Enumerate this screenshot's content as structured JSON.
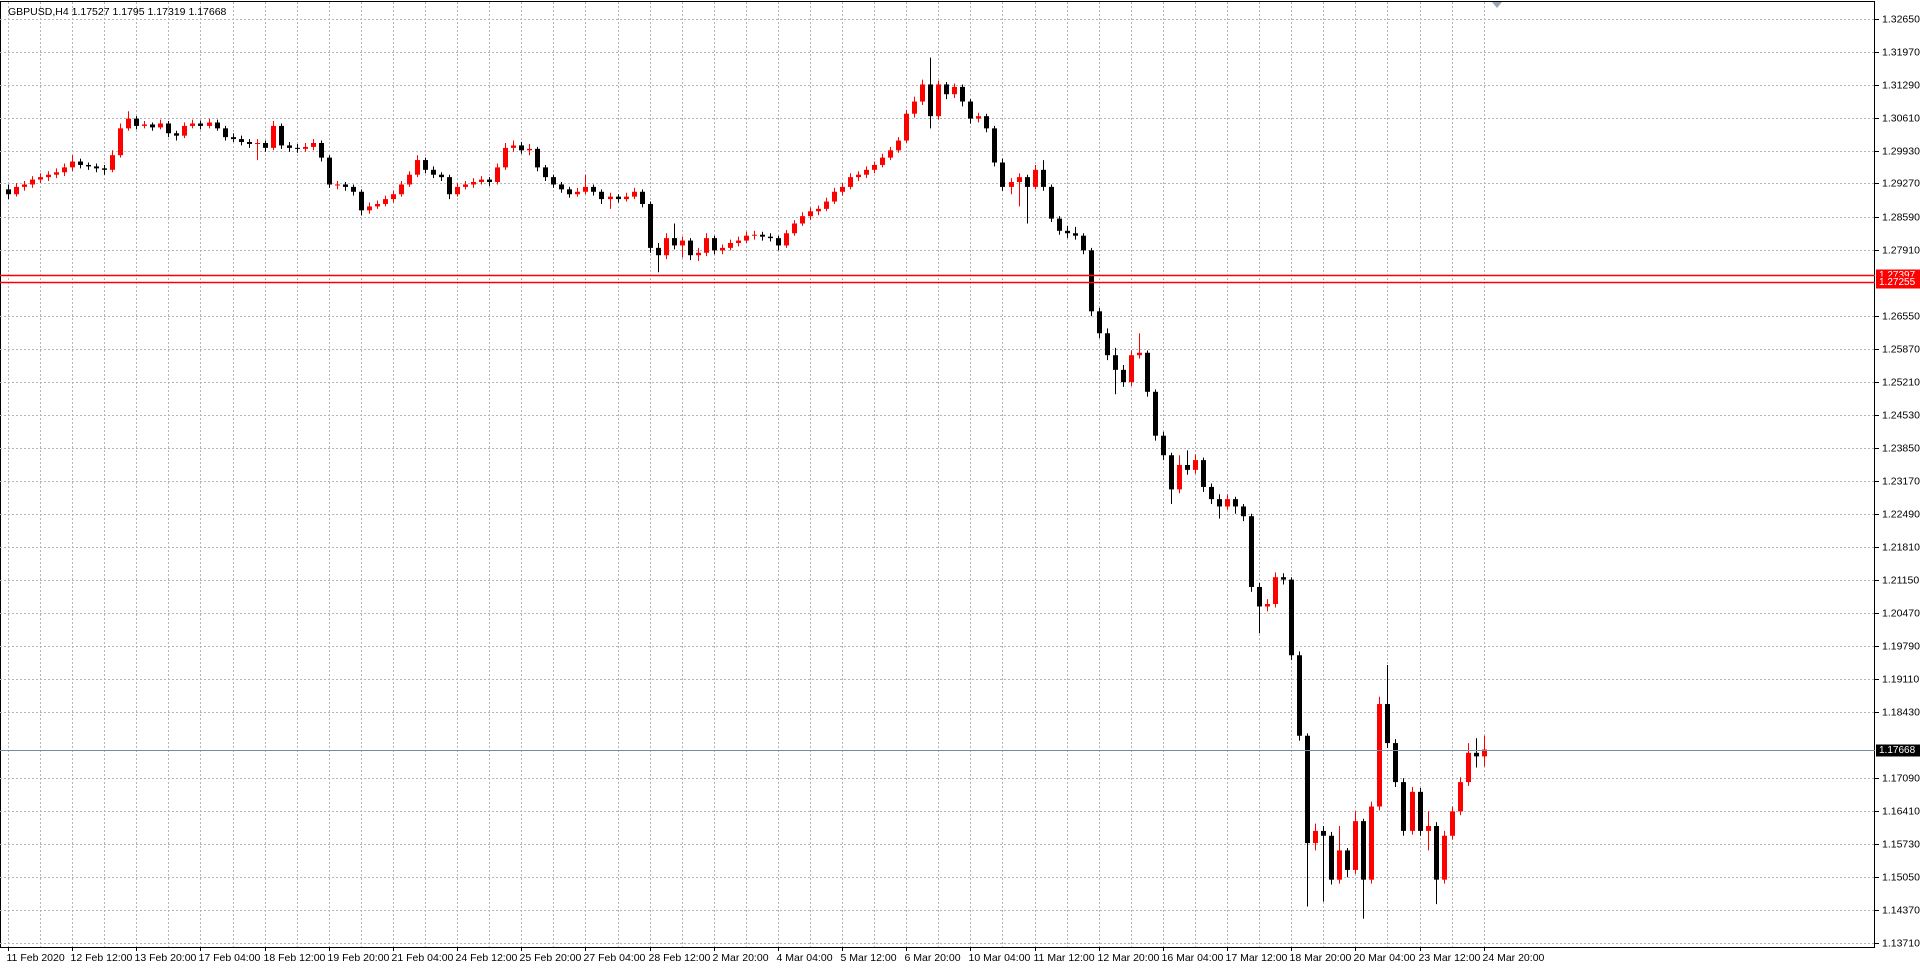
{
  "chart_data": {
    "type": "candlestick",
    "title": "GBPUSD,H4",
    "up_color": "#ff0000",
    "down_color": "#000000",
    "grid": true,
    "ylim": [
      1.1362,
      1.3299
    ],
    "yticks": [
      {
        "value": 1.3265,
        "label": "1.32650"
      },
      {
        "value": 1.3197,
        "label": "1.31970"
      },
      {
        "value": 1.3129,
        "label": "1.31290"
      },
      {
        "value": 1.3061,
        "label": "1.30610"
      },
      {
        "value": 1.2993,
        "label": "1.29930"
      },
      {
        "value": 1.2927,
        "label": "1.29270"
      },
      {
        "value": 1.2859,
        "label": "1.28590"
      },
      {
        "value": 1.2791,
        "label": "1.27910"
      },
      {
        "value": 1.2655,
        "label": "1.26550"
      },
      {
        "value": 1.2587,
        "label": "1.25870"
      },
      {
        "value": 1.2521,
        "label": "1.25210"
      },
      {
        "value": 1.2453,
        "label": "1.24530"
      },
      {
        "value": 1.2385,
        "label": "1.23850"
      },
      {
        "value": 1.2317,
        "label": "1.23170"
      },
      {
        "value": 1.2249,
        "label": "1.22490"
      },
      {
        "value": 1.2181,
        "label": "1.21810"
      },
      {
        "value": 1.2115,
        "label": "1.21150"
      },
      {
        "value": 1.2047,
        "label": "1.20470"
      },
      {
        "value": 1.1979,
        "label": "1.19790"
      },
      {
        "value": 1.1911,
        "label": "1.19110"
      },
      {
        "value": 1.1843,
        "label": "1.18430"
      },
      {
        "value": 1.1709,
        "label": "1.17090"
      },
      {
        "value": 1.1641,
        "label": "1.16410"
      },
      {
        "value": 1.1573,
        "label": "1.15730"
      },
      {
        "value": 1.1505,
        "label": "1.15050"
      },
      {
        "value": 1.1437,
        "label": "1.14370"
      },
      {
        "value": 1.1371,
        "label": "1.13710"
      }
    ],
    "levels": [
      {
        "value": 1.27397,
        "color": "#ff0000"
      },
      {
        "value": 1.27255,
        "color": "#ff0000"
      }
    ],
    "categories": [
      "11 Feb 2020",
      null,
      null,
      null,
      null,
      null,
      null,
      null,
      "12 Feb 12:00",
      null,
      null,
      null,
      null,
      null,
      null,
      null,
      "13 Feb 20:00",
      null,
      null,
      null,
      null,
      null,
      null,
      null,
      "17 Feb 04:00",
      null,
      null,
      null,
      null,
      null,
      null,
      null,
      "18 Feb 12:00",
      null,
      null,
      null,
      null,
      null,
      null,
      null,
      "19 Feb 20:00",
      null,
      null,
      null,
      null,
      null,
      null,
      null,
      "21 Feb 04:00",
      null,
      null,
      null,
      null,
      null,
      null,
      null,
      "24 Feb 12:00",
      null,
      null,
      null,
      null,
      null,
      null,
      null,
      "25 Feb 20:00",
      null,
      null,
      null,
      null,
      null,
      null,
      null,
      "27 Feb 04:00",
      null,
      null,
      null,
      null,
      null,
      null,
      null,
      "28 Feb 12:00",
      null,
      null,
      null,
      null,
      null,
      null,
      null,
      "2 Mar 20:00",
      null,
      null,
      null,
      null,
      null,
      null,
      null,
      "4 Mar 04:00",
      null,
      null,
      null,
      null,
      null,
      null,
      null,
      "5 Mar 12:00",
      null,
      null,
      null,
      null,
      null,
      null,
      null,
      "6 Mar 20:00",
      null,
      null,
      null,
      null,
      null,
      null,
      null,
      "10 Mar 04:00",
      null,
      null,
      null,
      null,
      null,
      null,
      null,
      "11 Mar 12:00",
      null,
      null,
      null,
      null,
      null,
      null,
      null,
      "12 Mar 20:00",
      null,
      null,
      null,
      null,
      null,
      null,
      null,
      "16 Mar 04:00",
      null,
      null,
      null,
      null,
      null,
      null,
      null,
      "17 Mar 12:00",
      null,
      null,
      null,
      null,
      null,
      null,
      null,
      "18 Mar 20:00",
      null,
      null,
      null,
      null,
      null,
      null,
      null,
      "20 Mar 04:00",
      null,
      null,
      null,
      null,
      null,
      null,
      null,
      "23 Mar 12:00",
      null,
      null,
      null,
      null,
      null,
      null,
      null,
      "24 Mar 20:00"
    ],
    "candles": [
      [
        1.2915,
        1.2925,
        1.2895,
        1.2905
      ],
      [
        1.2905,
        1.2928,
        1.29,
        1.292
      ],
      [
        1.292,
        1.2932,
        1.2912,
        1.2925
      ],
      [
        1.2925,
        1.2942,
        1.2918,
        1.2935
      ],
      [
        1.2935,
        1.2948,
        1.2928,
        1.294
      ],
      [
        1.294,
        1.2952,
        1.2932,
        1.2945
      ],
      [
        1.2945,
        1.2958,
        1.2938,
        1.295
      ],
      [
        1.295,
        1.2968,
        1.2942,
        1.296
      ],
      [
        1.296,
        1.2985,
        1.2952,
        1.2972
      ],
      [
        1.2972,
        1.2978,
        1.2958,
        1.2965
      ],
      [
        1.2965,
        1.297,
        1.2955,
        1.2962
      ],
      [
        1.2962,
        1.2968,
        1.295,
        1.2958
      ],
      [
        1.2958,
        1.2965,
        1.2945,
        1.2955
      ],
      [
        1.2955,
        1.2995,
        1.295,
        1.2985
      ],
      [
        1.2985,
        1.305,
        1.298,
        1.304
      ],
      [
        1.304,
        1.3075,
        1.3035,
        1.306
      ],
      [
        1.306,
        1.3065,
        1.3038,
        1.3045
      ],
      [
        1.3045,
        1.3055,
        1.304,
        1.3048
      ],
      [
        1.3048,
        1.3052,
        1.3035,
        1.3042
      ],
      [
        1.3042,
        1.3058,
        1.3038,
        1.305
      ],
      [
        1.305,
        1.3055,
        1.3022,
        1.303
      ],
      [
        1.303,
        1.3035,
        1.3015,
        1.3025
      ],
      [
        1.3025,
        1.3052,
        1.302,
        1.3045
      ],
      [
        1.3045,
        1.3058,
        1.304,
        1.305
      ],
      [
        1.305,
        1.3056,
        1.3038,
        1.3045
      ],
      [
        1.3045,
        1.306,
        1.304,
        1.3052
      ],
      [
        1.3052,
        1.3058,
        1.3035,
        1.304
      ],
      [
        1.304,
        1.3045,
        1.3015,
        1.3022
      ],
      [
        1.3022,
        1.303,
        1.3012,
        1.3018
      ],
      [
        1.3018,
        1.3025,
        1.3005,
        1.3012
      ],
      [
        1.3012,
        1.3018,
        1.3,
        1.3008
      ],
      [
        1.3008,
        1.3018,
        1.2975,
        1.301
      ],
      [
        1.301,
        1.3015,
        1.2992,
        1.3
      ],
      [
        1.3,
        1.3055,
        1.2995,
        1.3045
      ],
      [
        1.3045,
        1.305,
        1.2998,
        1.3005
      ],
      [
        1.3005,
        1.3012,
        1.2992,
        1.3
      ],
      [
        1.3,
        1.3008,
        1.299,
        1.2998
      ],
      [
        1.2998,
        1.301,
        1.2992,
        1.3002
      ],
      [
        1.3002,
        1.3018,
        1.2995,
        1.301
      ],
      [
        1.301,
        1.3015,
        1.2972,
        1.298
      ],
      [
        1.298,
        1.2985,
        1.2918,
        1.2925
      ],
      [
        1.2925,
        1.2932,
        1.2915,
        1.2925
      ],
      [
        1.2925,
        1.293,
        1.2912,
        1.292
      ],
      [
        1.292,
        1.2925,
        1.2902,
        1.291
      ],
      [
        1.291,
        1.2915,
        1.2862,
        1.2872
      ],
      [
        1.2872,
        1.2888,
        1.2865,
        1.288
      ],
      [
        1.288,
        1.2892,
        1.2875,
        1.2885
      ],
      [
        1.2885,
        1.2902,
        1.288,
        1.2895
      ],
      [
        1.2895,
        1.2912,
        1.2888,
        1.2905
      ],
      [
        1.2905,
        1.2932,
        1.29,
        1.2925
      ],
      [
        1.2925,
        1.2952,
        1.292,
        1.2945
      ],
      [
        1.2945,
        1.2985,
        1.294,
        1.2975
      ],
      [
        1.2975,
        1.298,
        1.2948,
        1.2955
      ],
      [
        1.2955,
        1.2962,
        1.2938,
        1.2945
      ],
      [
        1.2945,
        1.295,
        1.2932,
        1.294
      ],
      [
        1.294,
        1.2945,
        1.2895,
        1.2905
      ],
      [
        1.2905,
        1.2928,
        1.29,
        1.292
      ],
      [
        1.292,
        1.2932,
        1.2915,
        1.2925
      ],
      [
        1.2925,
        1.2938,
        1.2918,
        1.293
      ],
      [
        1.293,
        1.2942,
        1.2925,
        1.2935
      ],
      [
        1.2935,
        1.294,
        1.2922,
        1.293
      ],
      [
        1.293,
        1.2968,
        1.2925,
        1.296
      ],
      [
        1.296,
        1.301,
        1.2955,
        1.3
      ],
      [
        1.3,
        1.3015,
        1.2992,
        1.3005
      ],
      [
        1.3005,
        1.3012,
        1.2988,
        1.2995
      ],
      [
        1.2995,
        1.3008,
        1.2985,
        1.2998
      ],
      [
        1.2998,
        1.3002,
        1.2952,
        1.296
      ],
      [
        1.296,
        1.2965,
        1.2932,
        1.294
      ],
      [
        1.294,
        1.2945,
        1.2918,
        1.2925
      ],
      [
        1.2925,
        1.293,
        1.2908,
        1.2915
      ],
      [
        1.2915,
        1.292,
        1.2898,
        1.2905
      ],
      [
        1.2905,
        1.2918,
        1.29,
        1.291
      ],
      [
        1.291,
        1.2945,
        1.2905,
        1.292
      ],
      [
        1.292,
        1.2925,
        1.2902,
        1.291
      ],
      [
        1.291,
        1.2915,
        1.2885,
        1.2895
      ],
      [
        1.2895,
        1.2908,
        1.2875,
        1.29
      ],
      [
        1.29,
        1.2905,
        1.2888,
        1.2895
      ],
      [
        1.2895,
        1.2908,
        1.289,
        1.29
      ],
      [
        1.29,
        1.2918,
        1.2895,
        1.291
      ],
      [
        1.291,
        1.2915,
        1.2878,
        1.2885
      ],
      [
        1.2885,
        1.289,
        1.2785,
        1.2795
      ],
      [
        1.2795,
        1.2805,
        1.2745,
        1.278
      ],
      [
        1.278,
        1.2825,
        1.2772,
        1.2815
      ],
      [
        1.2815,
        1.2845,
        1.2792,
        1.28
      ],
      [
        1.28,
        1.2818,
        1.2775,
        1.281
      ],
      [
        1.281,
        1.2815,
        1.277,
        1.278
      ],
      [
        1.278,
        1.2795,
        1.2768,
        1.2785
      ],
      [
        1.2785,
        1.2825,
        1.2778,
        1.2815
      ],
      [
        1.2815,
        1.282,
        1.2782,
        1.279
      ],
      [
        1.279,
        1.2802,
        1.2782,
        1.2795
      ],
      [
        1.2795,
        1.2812,
        1.279,
        1.2805
      ],
      [
        1.2805,
        1.2818,
        1.2798,
        1.281
      ],
      [
        1.281,
        1.2828,
        1.2805,
        1.282
      ],
      [
        1.282,
        1.283,
        1.2812,
        1.2822
      ],
      [
        1.2822,
        1.2828,
        1.281,
        1.2818
      ],
      [
        1.2818,
        1.2825,
        1.2808,
        1.2815
      ],
      [
        1.2815,
        1.282,
        1.279,
        1.28
      ],
      [
        1.28,
        1.2832,
        1.2795,
        1.2825
      ],
      [
        1.2825,
        1.2852,
        1.282,
        1.2845
      ],
      [
        1.2845,
        1.2868,
        1.284,
        1.286
      ],
      [
        1.286,
        1.2878,
        1.2852,
        1.287
      ],
      [
        1.287,
        1.2882,
        1.2862,
        1.2875
      ],
      [
        1.2875,
        1.2898,
        1.287,
        1.289
      ],
      [
        1.289,
        1.2918,
        1.2885,
        1.291
      ],
      [
        1.291,
        1.2928,
        1.2902,
        1.292
      ],
      [
        1.292,
        1.2948,
        1.2915,
        1.294
      ],
      [
        1.294,
        1.2952,
        1.2932,
        1.2945
      ],
      [
        1.2945,
        1.2962,
        1.2938,
        1.2955
      ],
      [
        1.2955,
        1.2972,
        1.2948,
        1.2965
      ],
      [
        1.2965,
        1.2988,
        1.296,
        1.298
      ],
      [
        1.298,
        1.3002,
        1.2975,
        1.2995
      ],
      [
        1.2995,
        1.3022,
        1.299,
        1.3015
      ],
      [
        1.3015,
        1.3078,
        1.301,
        1.307
      ],
      [
        1.307,
        1.3105,
        1.3062,
        1.3095
      ],
      [
        1.3095,
        1.314,
        1.3088,
        1.313
      ],
      [
        1.313,
        1.3185,
        1.304,
        1.3065
      ],
      [
        1.3065,
        1.3138,
        1.3058,
        1.313
      ],
      [
        1.313,
        1.3135,
        1.31,
        1.311
      ],
      [
        1.311,
        1.3132,
        1.3102,
        1.3125
      ],
      [
        1.3125,
        1.313,
        1.3085,
        1.3095
      ],
      [
        1.3095,
        1.31,
        1.305,
        1.306
      ],
      [
        1.306,
        1.3072,
        1.3052,
        1.3065
      ],
      [
        1.3065,
        1.307,
        1.3032,
        1.304
      ],
      [
        1.304,
        1.3045,
        1.2962,
        1.297
      ],
      [
        1.297,
        1.2978,
        1.2912,
        1.292
      ],
      [
        1.292,
        1.2938,
        1.2905,
        1.293
      ],
      [
        1.293,
        1.2948,
        1.288,
        1.294
      ],
      [
        1.294,
        1.2945,
        1.2845,
        1.292
      ],
      [
        1.292,
        1.2965,
        1.2915,
        1.2955
      ],
      [
        1.2955,
        1.2975,
        1.2912,
        1.292
      ],
      [
        1.292,
        1.2925,
        1.2848,
        1.2855
      ],
      [
        1.2855,
        1.286,
        1.2822,
        1.283
      ],
      [
        1.283,
        1.284,
        1.2815,
        1.2825
      ],
      [
        1.2825,
        1.2838,
        1.2812,
        1.282
      ],
      [
        1.282,
        1.2825,
        1.2782,
        1.279
      ],
      [
        1.279,
        1.2795,
        1.2655,
        1.2665
      ],
      [
        1.2665,
        1.2672,
        1.261,
        1.262
      ],
      [
        1.262,
        1.263,
        1.2565,
        1.2575
      ],
      [
        1.2575,
        1.259,
        1.2495,
        1.2545
      ],
      [
        1.2545,
        1.2555,
        1.251,
        1.252
      ],
      [
        1.252,
        1.2585,
        1.2512,
        1.2575
      ],
      [
        1.2575,
        1.262,
        1.2568,
        1.258
      ],
      [
        1.258,
        1.2585,
        1.249,
        1.25
      ],
      [
        1.25,
        1.2505,
        1.24,
        1.241
      ],
      [
        1.241,
        1.2418,
        1.236,
        1.237
      ],
      [
        1.237,
        1.2375,
        1.227,
        1.23
      ],
      [
        1.23,
        1.237,
        1.2292,
        1.235
      ],
      [
        1.235,
        1.238,
        1.233,
        1.234
      ],
      [
        1.234,
        1.2372,
        1.2332,
        1.236
      ],
      [
        1.236,
        1.2365,
        1.2295,
        1.2305
      ],
      [
        1.2305,
        1.2312,
        1.227,
        1.228
      ],
      [
        1.228,
        1.229,
        1.224,
        1.2265
      ],
      [
        1.2265,
        1.229,
        1.2258,
        1.228
      ],
      [
        1.228,
        1.2285,
        1.225,
        1.2265
      ],
      [
        1.2265,
        1.227,
        1.2235,
        1.2245
      ],
      [
        1.2245,
        1.225,
        1.209,
        1.21
      ],
      [
        1.21,
        1.2108,
        1.2005,
        1.206
      ],
      [
        1.206,
        1.2075,
        1.205,
        1.2065
      ],
      [
        1.2065,
        1.213,
        1.2058,
        1.212
      ],
      [
        1.212,
        1.2128,
        1.2105,
        1.2115
      ],
      [
        1.2115,
        1.212,
        1.195,
        1.196
      ],
      [
        1.196,
        1.1968,
        1.1785,
        1.1795
      ],
      [
        1.1795,
        1.18,
        1.1445,
        1.1575
      ],
      [
        1.1575,
        1.1615,
        1.156,
        1.16
      ],
      [
        1.16,
        1.161,
        1.1455,
        1.159
      ],
      [
        1.159,
        1.1598,
        1.149,
        1.15
      ],
      [
        1.15,
        1.161,
        1.1492,
        1.156
      ],
      [
        1.156,
        1.1565,
        1.1505,
        1.152
      ],
      [
        1.152,
        1.164,
        1.1512,
        1.162
      ],
      [
        1.162,
        1.1625,
        1.142,
        1.15
      ],
      [
        1.15,
        1.166,
        1.1492,
        1.165
      ],
      [
        1.165,
        1.1875,
        1.1642,
        1.186
      ],
      [
        1.186,
        1.194,
        1.177,
        1.178
      ],
      [
        1.178,
        1.1788,
        1.169,
        1.17
      ],
      [
        1.17,
        1.1708,
        1.159,
        1.16
      ],
      [
        1.16,
        1.169,
        1.1592,
        1.168
      ],
      [
        1.168,
        1.1688,
        1.159,
        1.16
      ],
      [
        1.16,
        1.164,
        1.156,
        1.161
      ],
      [
        1.161,
        1.1618,
        1.145,
        1.15
      ],
      [
        1.15,
        1.16,
        1.1492,
        1.159
      ],
      [
        1.159,
        1.165,
        1.1582,
        1.164
      ],
      [
        1.164,
        1.171,
        1.1632,
        1.17
      ],
      [
        1.17,
        1.178,
        1.1692,
        1.176
      ],
      [
        1.176,
        1.179,
        1.173,
        1.17527
      ],
      [
        1.17527,
        1.1795,
        1.17319,
        1.17668
      ]
    ]
  }
}
